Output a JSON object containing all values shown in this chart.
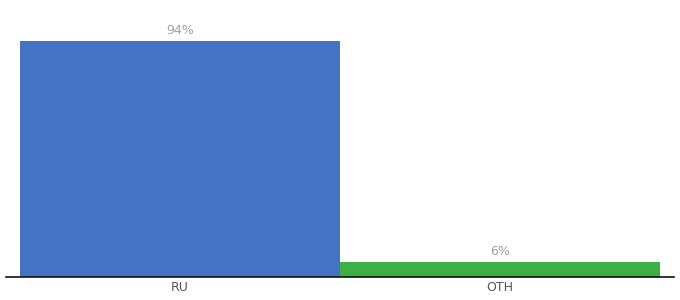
{
  "categories": [
    "RU",
    "OTH"
  ],
  "values": [
    94,
    6
  ],
  "bar_colors": [
    "#4472c4",
    "#3cb043"
  ],
  "label_texts": [
    "94%",
    "6%"
  ],
  "label_color": "#a0a0a0",
  "ylim": [
    0,
    108
  ],
  "background_color": "#ffffff",
  "tick_color": "#555555",
  "label_fontsize": 9,
  "tick_fontsize": 9,
  "bar_width": 0.55,
  "x_positions": [
    0.3,
    0.85
  ],
  "xlim": [
    0.0,
    1.15
  ]
}
